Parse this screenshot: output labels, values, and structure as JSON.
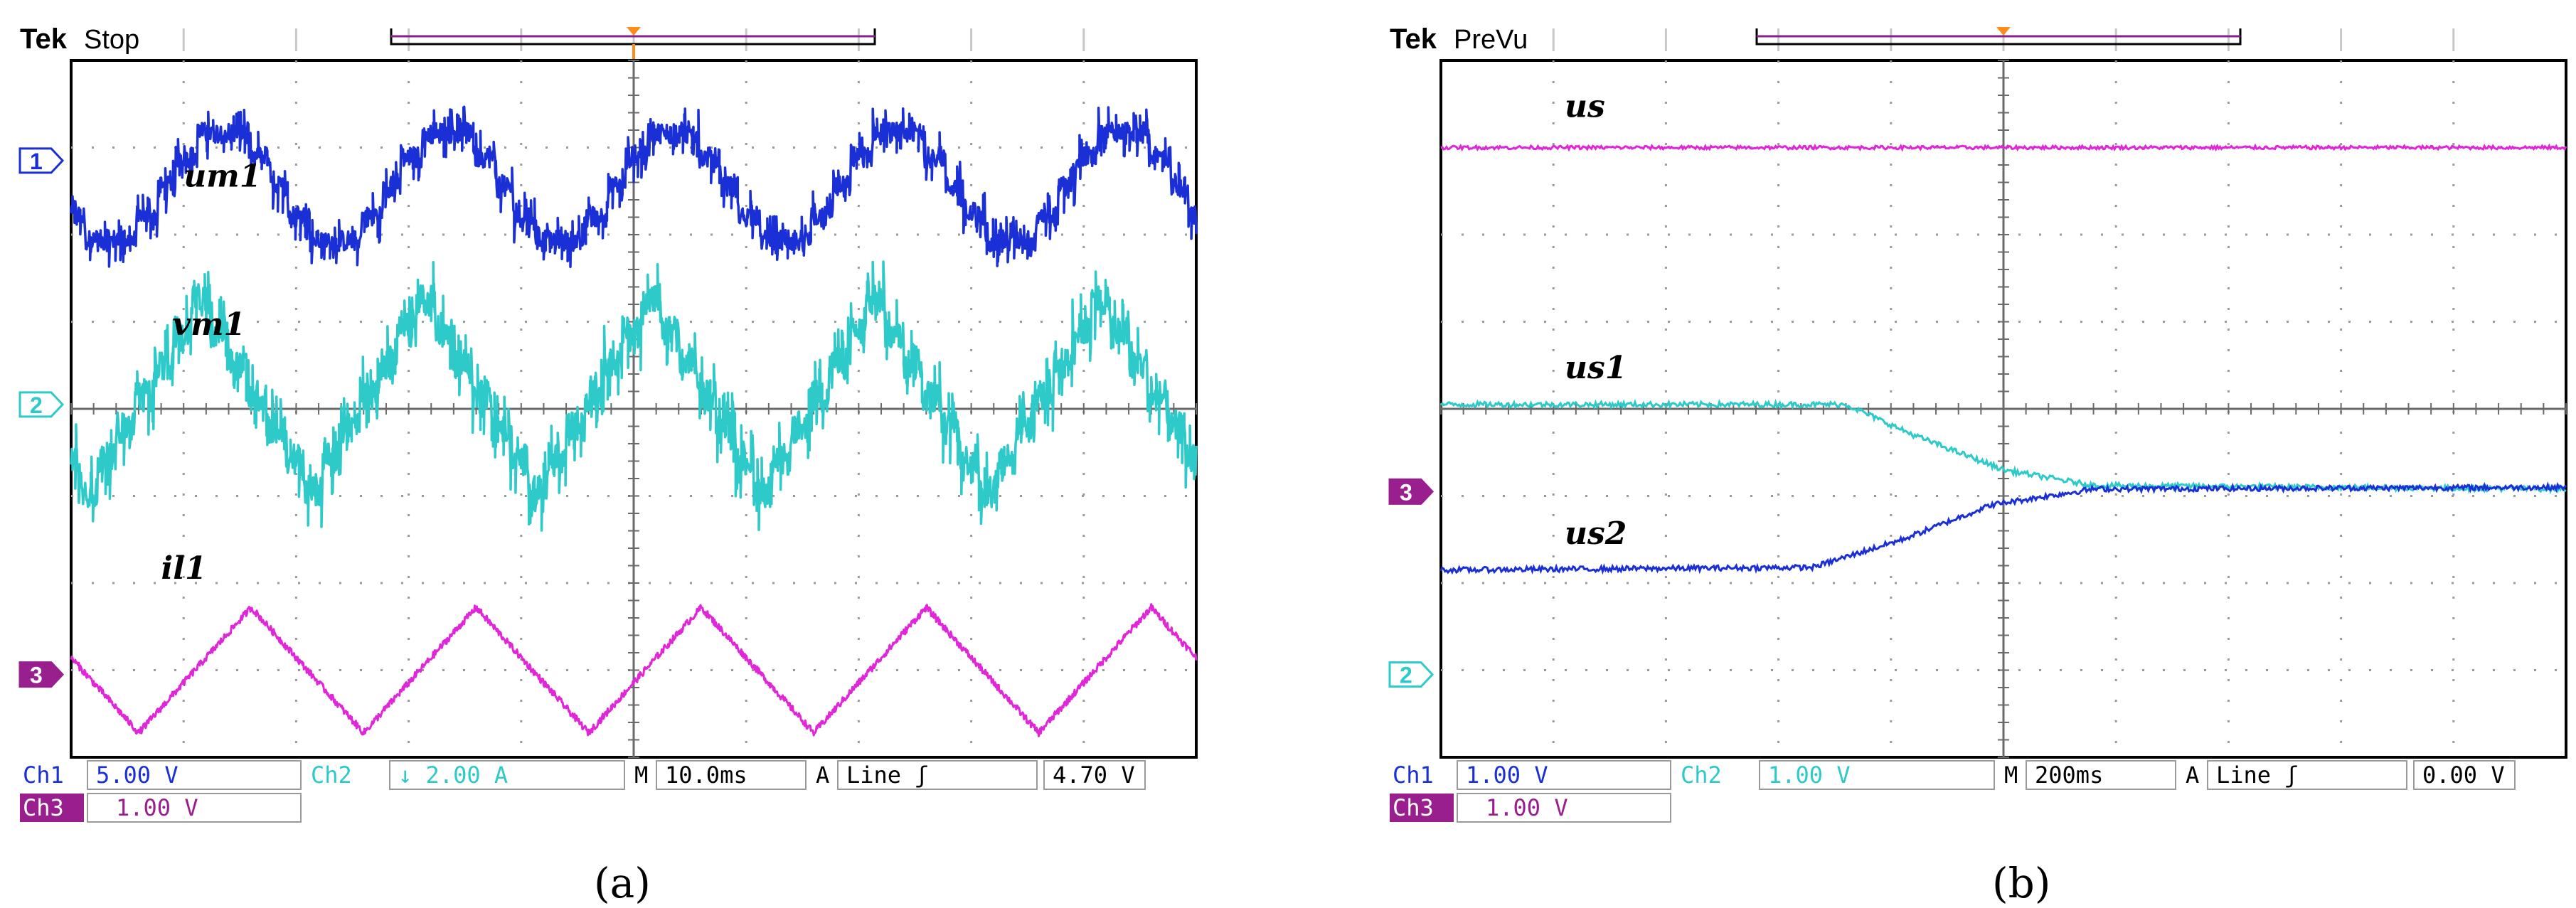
{
  "panels": [
    {
      "id": "a",
      "caption": "(a)",
      "brand": "Tek",
      "mode": "Stop",
      "trigger_marker": "T",
      "channel_markers": [
        {
          "label": "1",
          "color": "#1a2fd6",
          "level_div": 2.85
        },
        {
          "label": "2",
          "color": "#2ec9c9",
          "level_div": 0.05
        },
        {
          "label": "3",
          "color": "#9a1f8e",
          "level_div": -3.05
        }
      ],
      "bottom_row1": [
        {
          "key": "ch1_name",
          "text": "Ch1",
          "color": "#1a2fd6"
        },
        {
          "key": "ch1_scale",
          "text": "5.00 V",
          "color": "#1a2fd6"
        },
        {
          "key": "ch2_name",
          "text": "Ch2",
          "color": "#2ec9c9"
        },
        {
          "key": "ch2_scale",
          "text": "↓ 2.00 A",
          "color": "#2ec9c9"
        },
        {
          "key": "m",
          "text": "M",
          "color": "#000000"
        },
        {
          "key": "timebase",
          "text": "10.0ms",
          "color": "#000000"
        },
        {
          "key": "a",
          "text": "A",
          "color": "#000000"
        },
        {
          "key": "trigger",
          "text": "Line ʃ",
          "color": "#000000"
        },
        {
          "key": "level",
          "text": "4.70 V",
          "color": "#000000"
        }
      ],
      "bottom_row2": [
        {
          "key": "ch3_name",
          "text": "Ch3",
          "color": "#9a1f8e"
        },
        {
          "key": "ch3_scale",
          "text": "1.00 V",
          "color": "#9a1f8e"
        }
      ]
    },
    {
      "id": "b",
      "caption": "(b)",
      "brand": "Tek",
      "mode": "PreVu",
      "channel_markers": [
        {
          "label": "3",
          "color": "#9a1f8e",
          "level_div": -0.95
        },
        {
          "label": "2",
          "color": "#2ec9c9",
          "level_div": -3.05
        }
      ],
      "bottom_row1": [
        {
          "key": "ch1_name",
          "text": "Ch1",
          "color": "#1a2fd6"
        },
        {
          "key": "ch1_scale",
          "text": "1.00 V",
          "color": "#1a2fd6"
        },
        {
          "key": "ch2_name",
          "text": "Ch2",
          "color": "#2ec9c9"
        },
        {
          "key": "ch2_scale",
          "text": "1.00 V",
          "color": "#2ec9c9"
        },
        {
          "key": "m",
          "text": "M",
          "color": "#000000"
        },
        {
          "key": "timebase",
          "text": "200ms",
          "color": "#000000"
        },
        {
          "key": "a",
          "text": "A",
          "color": "#000000"
        },
        {
          "key": "trigger",
          "text": "Line ʃ",
          "color": "#000000"
        },
        {
          "key": "level",
          "text": "0.00 V",
          "color": "#000000"
        }
      ],
      "bottom_row2": [
        {
          "key": "ch3_name",
          "text": "Ch3",
          "color": "#9a1f8e"
        },
        {
          "key": "ch3_scale",
          "text": "1.00 V",
          "color": "#9a1f8e"
        }
      ]
    }
  ],
  "chart_data": [
    {
      "type": "line",
      "panel": "a",
      "x_divisions": 10,
      "y_divisions": 8,
      "x_unit_per_div": "10.0ms",
      "xlim": [
        0,
        10
      ],
      "ylim": [
        -4,
        4
      ],
      "grid": true,
      "series": [
        {
          "name": "um1",
          "color": "#1a2fd6",
          "waveform": "staircase-square",
          "period_div": 2.0,
          "phase_div": 0.85,
          "center_div": 2.55,
          "amplitude_div": 0.62,
          "noise_div": 0.12,
          "label_x_div": 1.0,
          "label_y_div": 2.55
        },
        {
          "name": "vm1",
          "color": "#2ec9c9",
          "waveform": "staircase-triangle",
          "period_div": 2.0,
          "phase_div": 0.15,
          "center_div": 0.15,
          "amplitude_div": 1.1,
          "noise_div": 0.18,
          "label_x_div": 0.9,
          "label_y_div": 0.85
        },
        {
          "name": "il1",
          "color": "#e026d8",
          "waveform": "triangle",
          "period_div": 2.0,
          "phase_div": 0.6,
          "center_div": -3.0,
          "amplitude_div": 0.72,
          "noise_div": 0.04,
          "label_x_div": 0.8,
          "label_y_div": -1.95
        }
      ]
    },
    {
      "type": "line",
      "panel": "b",
      "x_divisions": 10,
      "y_divisions": 8,
      "x_unit_per_div": "200ms",
      "xlim": [
        0,
        10
      ],
      "ylim": [
        -4,
        4
      ],
      "grid": true,
      "series": [
        {
          "name": "us",
          "color": "#e026d8",
          "points": [
            [
              0,
              3.0
            ],
            [
              10,
              3.0
            ]
          ],
          "noise_div": 0.02,
          "label_x_div": 1.1,
          "label_y_div": 3.35
        },
        {
          "name": "us1",
          "color": "#2ec9c9",
          "points": [
            [
              0,
              0.05
            ],
            [
              3.6,
              0.05
            ],
            [
              4.2,
              -0.3
            ],
            [
              5.0,
              -0.7
            ],
            [
              5.8,
              -0.88
            ],
            [
              10,
              -0.92
            ]
          ],
          "noise_div": 0.03,
          "label_x_div": 1.1,
          "label_y_div": 0.35
        },
        {
          "name": "us2",
          "color": "#1a2fd6",
          "points": [
            [
              0,
              -1.85
            ],
            [
              3.3,
              -1.82
            ],
            [
              4.1,
              -1.5
            ],
            [
              4.9,
              -1.1
            ],
            [
              5.8,
              -0.92
            ],
            [
              10,
              -0.9
            ]
          ],
          "noise_div": 0.03,
          "label_x_div": 1.1,
          "label_y_div": -1.55
        }
      ]
    }
  ]
}
